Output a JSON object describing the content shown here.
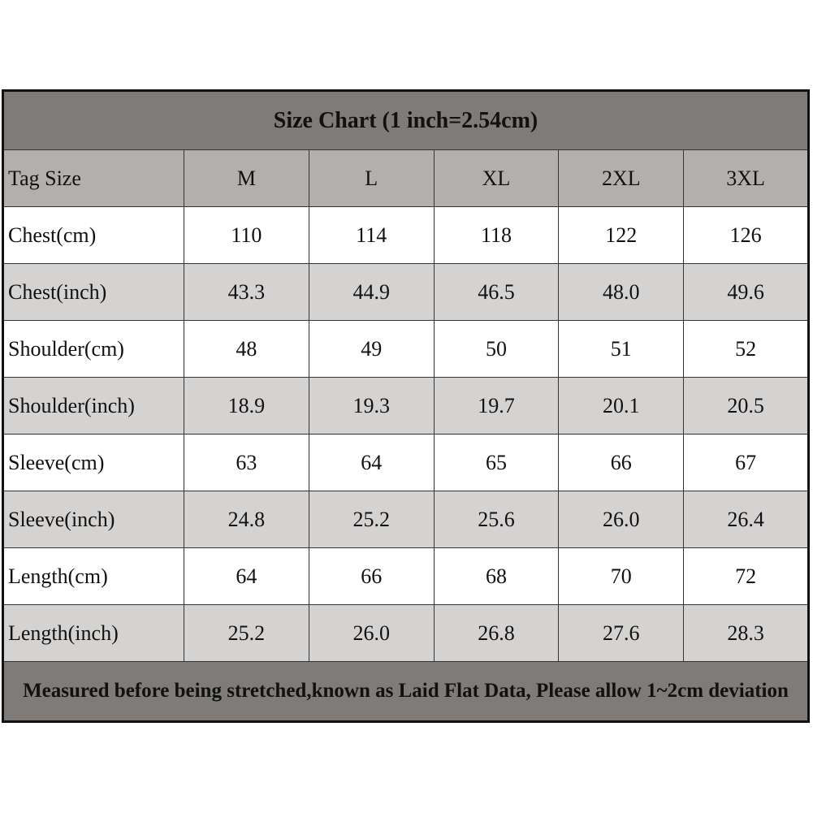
{
  "table": {
    "title": "Size Chart (1 inch=2.54cm)",
    "header": [
      "Tag Size",
      "M",
      "L",
      "XL",
      "2XL",
      "3XL"
    ],
    "rows": [
      [
        "Chest(cm)",
        "110",
        "114",
        "118",
        "122",
        "126"
      ],
      [
        "Chest(inch)",
        "43.3",
        "44.9",
        "46.5",
        "48.0",
        "49.6"
      ],
      [
        "Shoulder(cm)",
        "48",
        "49",
        "50",
        "51",
        "52"
      ],
      [
        "Shoulder(inch)",
        "18.9",
        "19.3",
        "19.7",
        "20.1",
        "20.5"
      ],
      [
        "Sleeve(cm)",
        "63",
        "64",
        "65",
        "66",
        "67"
      ],
      [
        "Sleeve(inch)",
        "24.8",
        "25.2",
        "25.6",
        "26.0",
        "26.4"
      ],
      [
        "Length(cm)",
        "64",
        "66",
        "68",
        "70",
        "72"
      ],
      [
        "Length(inch)",
        "25.2",
        "26.0",
        "26.8",
        "27.6",
        "28.3"
      ]
    ],
    "footer": "Measured before being stretched,known as Laid Flat Data, Please allow 1~2cm deviation"
  }
}
